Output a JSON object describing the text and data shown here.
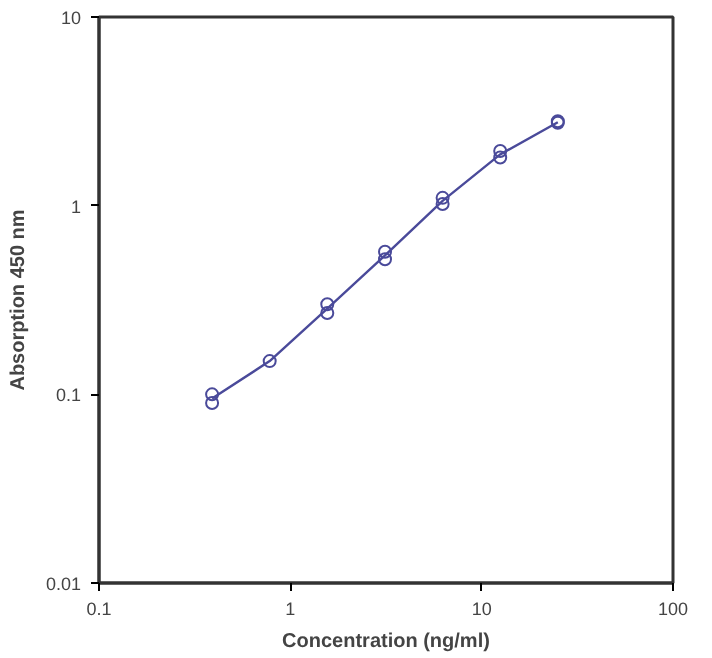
{
  "chart_data": {
    "type": "scatter",
    "xlabel": "Concentration (ng/ml)",
    "ylabel": "Absorption 450 nm",
    "log": "xy",
    "grid": false,
    "xlim": [
      0.1,
      100
    ],
    "xticks": [
      0.1,
      1,
      10,
      100
    ],
    "ylim": [
      0.01,
      10
    ],
    "yticks": [
      0.01,
      0.1,
      1,
      10
    ],
    "series": [
      {
        "marker": "circle",
        "color": "#4a4a9a",
        "x": [
          0.39,
          0.39,
          0.78,
          1.56,
          1.56,
          3.125,
          3.125,
          6.25,
          6.25,
          12.5,
          12.5,
          25,
          25
        ],
        "values": [
          0.1,
          0.09,
          0.15,
          0.3,
          0.27,
          0.57,
          0.52,
          1.1,
          1.02,
          1.95,
          1.8,
          2.8,
          2.75
        ]
      },
      {
        "type": "line",
        "marker": "none",
        "color": "#4a4a9a",
        "x": [
          0.39,
          0.78,
          1.56,
          3.125,
          6.25,
          12.5,
          25
        ],
        "values": [
          0.095,
          0.15,
          0.285,
          0.545,
          1.06,
          1.87,
          2.77
        ]
      }
    ]
  }
}
